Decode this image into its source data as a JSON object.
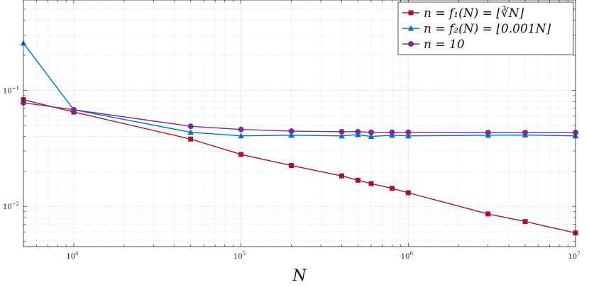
{
  "chart_data": {
    "type": "line",
    "title": "",
    "xlabel": "N",
    "ylabel": "",
    "xscale": "log",
    "yscale": "log",
    "xlim": [
      5000,
      10000000
    ],
    "ylim": [
      0.0045,
      0.6
    ],
    "grid": true,
    "legend_position": "top-right",
    "x_tick_labels": [
      {
        "value": 10000,
        "base": "10",
        "exp": "4"
      },
      {
        "value": 100000,
        "base": "10",
        "exp": "5"
      },
      {
        "value": 1000000,
        "base": "10",
        "exp": "6"
      },
      {
        "value": 10000000,
        "base": "10",
        "exp": "7"
      }
    ],
    "y_tick_labels": [
      {
        "value": 0.01,
        "base": "10",
        "exp": "−2"
      },
      {
        "value": 0.1,
        "base": "10",
        "exp": "−1"
      }
    ],
    "series": [
      {
        "name": "n = f₁(N) = ⌊∛N⌋",
        "color": "#a2142f",
        "marker": "square",
        "x": [
          5000,
          10000,
          50000,
          100000,
          200000,
          400000,
          500000,
          600000,
          800000,
          1000000,
          3000000,
          5000000,
          10000000
        ],
        "y": [
          0.083,
          0.065,
          0.038,
          0.028,
          0.0225,
          0.0183,
          0.0168,
          0.0157,
          0.0143,
          0.0131,
          0.0086,
          0.0074,
          0.0059
        ]
      },
      {
        "name": "n = f₂(N) = ⌊0.001N⌋",
        "color": "#0072bd",
        "marker": "triangle",
        "x": [
          5000,
          10000,
          50000,
          100000,
          200000,
          400000,
          500000,
          600000,
          800000,
          1000000,
          3000000,
          5000000,
          10000000
        ],
        "y": [
          0.255,
          0.068,
          0.0435,
          0.0405,
          0.041,
          0.0405,
          0.0415,
          0.04,
          0.041,
          0.0405,
          0.041,
          0.0412,
          0.0405
        ]
      },
      {
        "name": "n = 10",
        "color": "#7e2f8e",
        "marker": "circle",
        "x": [
          5000,
          10000,
          50000,
          100000,
          200000,
          400000,
          500000,
          600000,
          800000,
          1000000,
          3000000,
          5000000,
          10000000
        ],
        "y": [
          0.078,
          0.068,
          0.049,
          0.046,
          0.0445,
          0.044,
          0.044,
          0.0435,
          0.0435,
          0.0435,
          0.0433,
          0.0433,
          0.0433
        ]
      }
    ]
  }
}
